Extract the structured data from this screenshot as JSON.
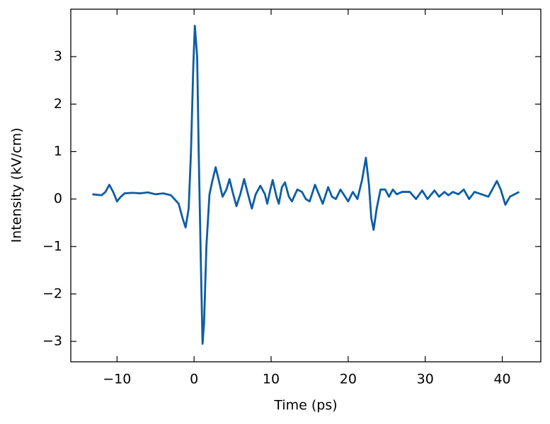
{
  "chart_data": {
    "type": "line",
    "x_label": "Time (ps)",
    "y_label": "Intensity (kV/cm)",
    "xlim": [
      -16,
      45
    ],
    "ylim": [
      -3.43,
      4.0
    ],
    "xticks": [
      {
        "value": -10,
        "label": "−10"
      },
      0,
      10,
      20,
      30,
      40
    ],
    "yticks": [
      {
        "value": -3,
        "label": "−3"
      },
      {
        "value": -2,
        "label": "−2"
      },
      {
        "value": -1,
        "label": "−1"
      },
      0,
      1,
      2,
      3
    ],
    "series": [
      {
        "color": "#0C5DA5",
        "x": [
          -13.2,
          -12,
          -11.5,
          -11,
          -10.5,
          -10,
          -9.5,
          -9,
          -8,
          -7,
          -6,
          -5,
          -4,
          -3,
          -2,
          -1.5,
          -1.1,
          -0.7,
          -0.4,
          -0.1,
          0.1,
          0.4,
          0.6,
          0.9,
          1.1,
          1.3,
          1.6,
          2.0,
          2.4,
          2.8,
          3.2,
          3.7,
          4.2,
          4.6,
          5.0,
          5.5,
          6.0,
          6.5,
          7.0,
          7.5,
          8.0,
          8.6,
          9.2,
          9.5,
          9.9,
          10.2,
          10.7,
          11.0,
          11.4,
          11.8,
          12.3,
          12.7,
          13.4,
          14.0,
          14.5,
          15.0,
          15.7,
          16.2,
          16.7,
          17.4,
          17.9,
          18.4,
          19.0,
          19.6,
          20.0,
          20.6,
          21.2,
          21.8,
          22.3,
          22.7,
          23.0,
          23.3,
          23.7,
          24.2,
          24.8,
          25.3,
          25.8,
          26.3,
          27,
          28,
          28.8,
          29.6,
          30.3,
          31.2,
          31.8,
          32.5,
          33.0,
          33.6,
          34.3,
          35.0,
          35.7,
          36.4,
          37.3,
          38.2,
          39.3,
          39.8,
          40.4,
          41.0,
          41.6,
          42.2
        ],
        "values": [
          0.1,
          0.08,
          0.15,
          0.3,
          0.15,
          -0.05,
          0.05,
          0.12,
          0.13,
          0.12,
          0.14,
          0.1,
          0.12,
          0.08,
          -0.1,
          -0.4,
          -0.6,
          -0.2,
          1.0,
          2.8,
          3.65,
          3.0,
          1.0,
          -1.5,
          -3.05,
          -2.6,
          -1.0,
          0.1,
          0.4,
          0.67,
          0.4,
          0.05,
          0.2,
          0.42,
          0.15,
          -0.15,
          0.1,
          0.42,
          0.1,
          -0.2,
          0.1,
          0.28,
          0.1,
          -0.1,
          0.2,
          0.4,
          0.05,
          -0.1,
          0.25,
          0.35,
          0.05,
          -0.05,
          0.2,
          0.15,
          0.0,
          -0.05,
          0.3,
          0.1,
          -0.1,
          0.25,
          0.05,
          0.0,
          0.2,
          0.05,
          -0.05,
          0.15,
          0.0,
          0.4,
          0.87,
          0.3,
          -0.4,
          -0.65,
          -0.2,
          0.2,
          0.2,
          0.05,
          0.2,
          0.1,
          0.15,
          0.15,
          0.0,
          0.18,
          0.0,
          0.18,
          0.05,
          0.15,
          0.08,
          0.15,
          0.1,
          0.2,
          0.0,
          0.15,
          0.1,
          0.05,
          0.38,
          0.2,
          -0.12,
          0.05,
          0.1,
          0.15
        ]
      }
    ]
  }
}
